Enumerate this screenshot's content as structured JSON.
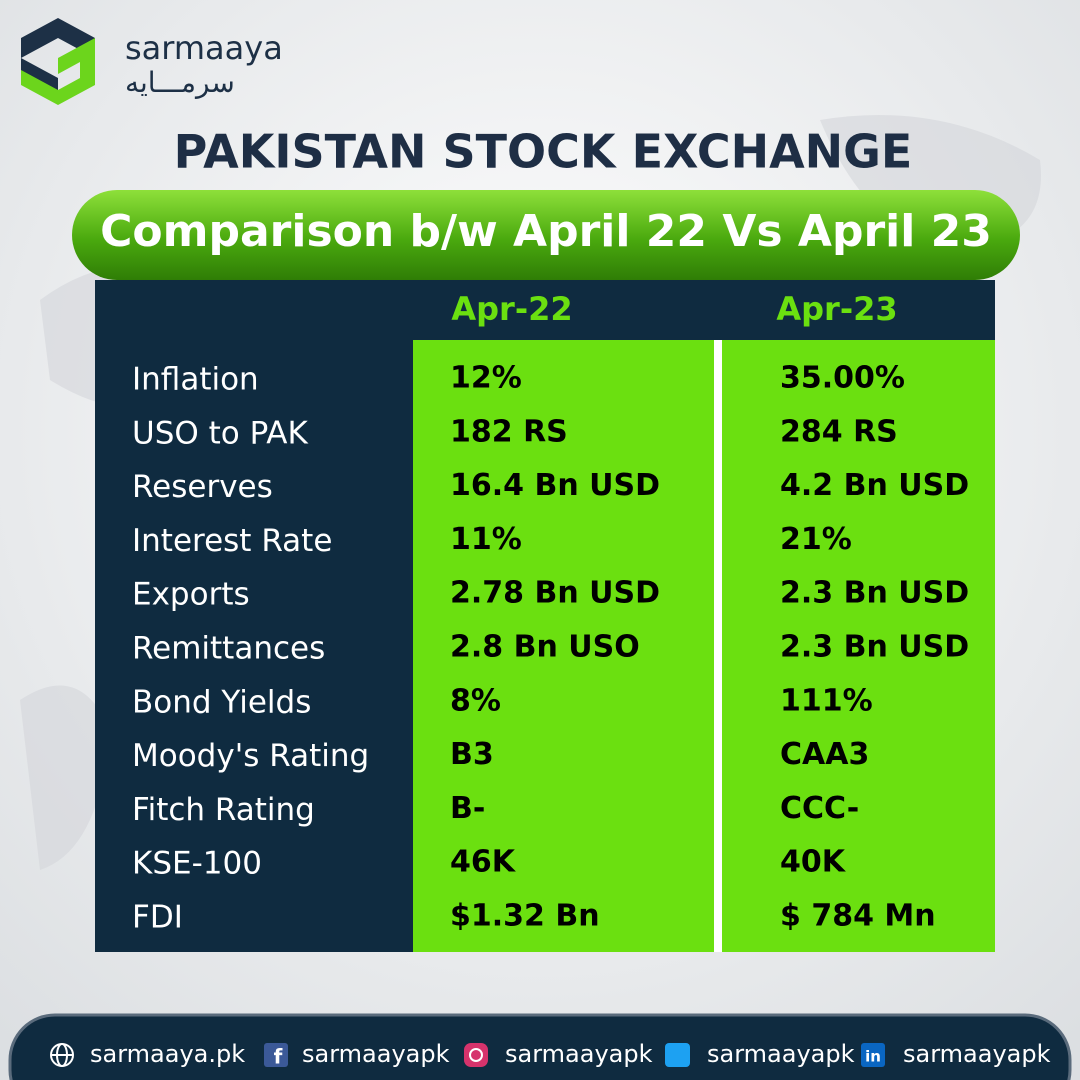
{
  "header": {
    "brand": "sarmaaya",
    "brand_urdu": "سرمـــايه",
    "title": "PAKISTAN STOCK EXCHANGE",
    "subtitle": "Comparison b/w April 22 Vs April 23"
  },
  "table": {
    "columns": [
      "Apr-22",
      "Apr-23"
    ],
    "rows": [
      [
        "Inflation",
        "12%",
        "35.00%"
      ],
      [
        "USO to PAK",
        "182 RS",
        "284 RS"
      ],
      [
        "Reserves",
        "16.4 Bn USD",
        "4.2 Bn USD"
      ],
      [
        "Interest Rate",
        "11%",
        "21%"
      ],
      [
        "Exports",
        "2.78 Bn USD",
        "2.3 Bn USD"
      ],
      [
        "Remittances",
        "2.8 Bn USO",
        "2.3 Bn USD"
      ],
      [
        "Bond Yields",
        "8%",
        "111%"
      ],
      [
        "Moody's Rating",
        "B3",
        "CAA3"
      ],
      [
        "Fitch Rating",
        "B-",
        "CCC-"
      ],
      [
        "KSE-100",
        "46K",
        "40K"
      ],
      [
        "FDI",
        "$1.32 Bn",
        "$ 784 Mn"
      ]
    ]
  },
  "footer": {
    "links": [
      "sarmaaya.pk",
      "sarmaayapk",
      "sarmaayapk",
      "sarmaayapk",
      "sarmaayapk"
    ]
  }
}
